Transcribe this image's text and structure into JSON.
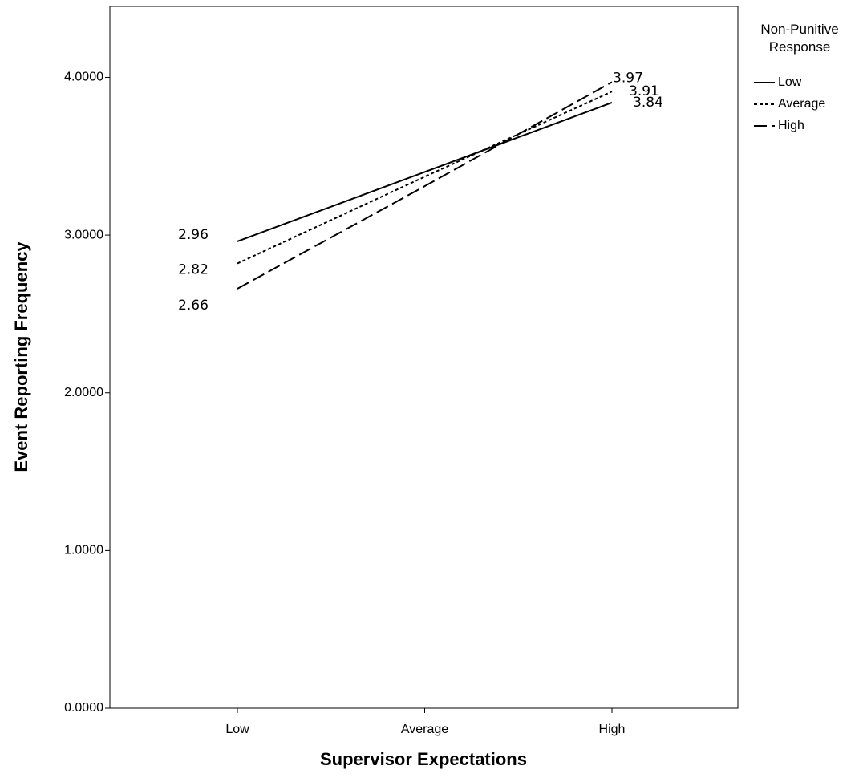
{
  "chart_data": {
    "type": "line",
    "x_label": "Supervisor Expectations",
    "y_label": "Event Reporting Frequency",
    "legend_title": "Non-Punitive Response",
    "categories": [
      "Low",
      "Average",
      "High"
    ],
    "series": [
      {
        "name": "Low",
        "color": "#000000",
        "dash": "none",
        "values": [
          2.96,
          3.4,
          3.84
        ],
        "value_labels": [
          "2.96",
          null,
          "3.84"
        ]
      },
      {
        "name": "Average",
        "color": "#000000",
        "dash": "4,3",
        "values": [
          2.82,
          3.37,
          3.91
        ],
        "value_labels": [
          "2.82",
          null,
          "3.91"
        ]
      },
      {
        "name": "High",
        "color": "#000000",
        "dash": "16,6",
        "values": [
          2.66,
          3.31,
          3.97
        ],
        "value_labels": [
          "2.66",
          null,
          "3.97"
        ]
      }
    ],
    "ylim": [
      0,
      4.45
    ],
    "yticks": [
      {
        "value": 0,
        "label": "0.0000"
      },
      {
        "value": 1,
        "label": "1.0000"
      },
      {
        "value": 2,
        "label": "2.0000"
      },
      {
        "value": 3,
        "label": "3.0000"
      },
      {
        "value": 4,
        "label": "4.0000"
      }
    ],
    "grid": false
  }
}
